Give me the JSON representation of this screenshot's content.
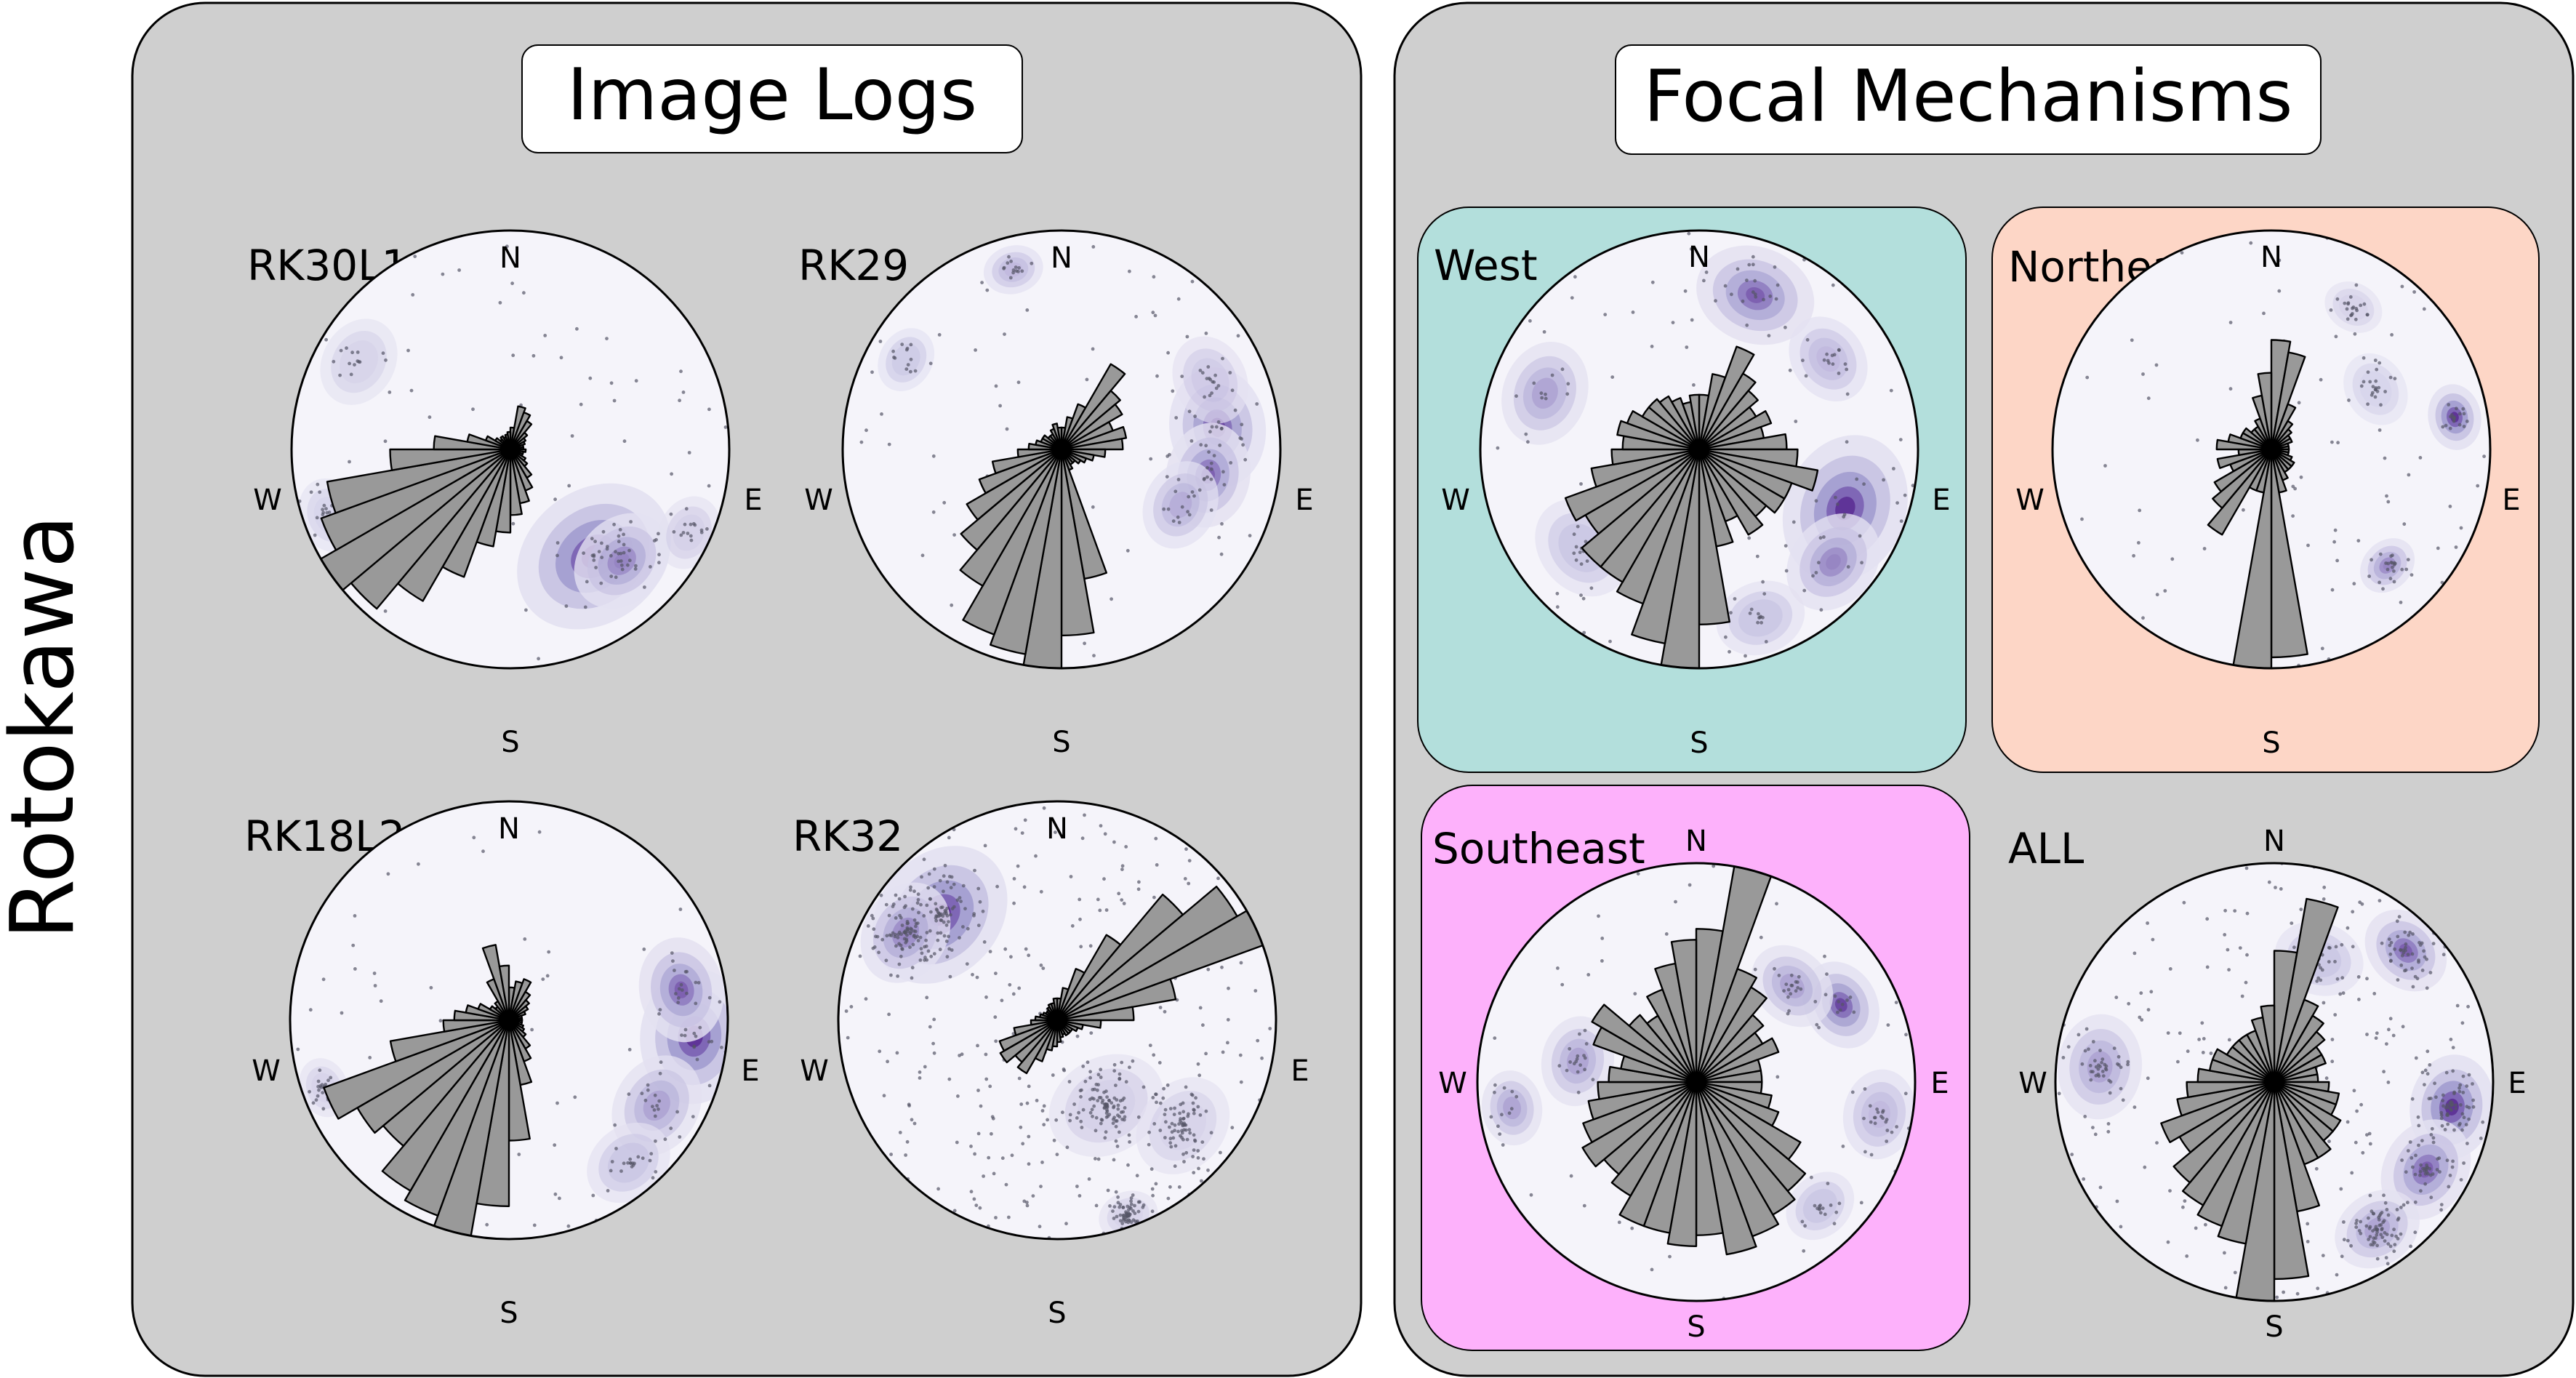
{
  "figure": {
    "side_label": "Rotokawa",
    "colors": {
      "panel_bg": "#cfcfcf",
      "stereonet_bg": "#f5f4fa",
      "density_low": "#e3e1f1",
      "density_mid": "#a29ccf",
      "density_high": "#5b2e94",
      "rose_fill": "#999999",
      "west_bg": "#b3dfdc",
      "northeast_bg": "#fdd6c6",
      "southeast_bg": "#fdb1fb"
    }
  },
  "panels": [
    {
      "title": "Image Logs",
      "plots": [
        {
          "label": "RK30L1",
          "bg_color": "",
          "compass": {
            "n": "N",
            "s": "S",
            "e": "E",
            "w": "W"
          }
        },
        {
          "label": "RK29",
          "bg_color": "",
          "compass": {
            "n": "N",
            "s": "S",
            "e": "E",
            "w": "W"
          }
        },
        {
          "label": "RK18L2",
          "bg_color": "",
          "compass": {
            "n": "N",
            "s": "S",
            "e": "E",
            "w": "W"
          }
        },
        {
          "label": "RK32",
          "bg_color": "",
          "compass": {
            "n": "N",
            "s": "S",
            "e": "E",
            "w": "W"
          }
        }
      ]
    },
    {
      "title": "Focal Mechanisms",
      "plots": [
        {
          "label": "West",
          "bg_color": "#b3dfdc",
          "compass": {
            "n": "N",
            "s": "S",
            "e": "E",
            "w": "W"
          }
        },
        {
          "label": "Northeast",
          "bg_color": "#fdd6c6",
          "compass": {
            "n": "N",
            "s": "S",
            "e": "E",
            "w": "W"
          }
        },
        {
          "label": "Southeast",
          "bg_color": "#fdb1fb",
          "compass": {
            "n": "N",
            "s": "S",
            "e": "E",
            "w": "W"
          }
        },
        {
          "label": "ALL",
          "bg_color": "",
          "compass": {
            "n": "N",
            "s": "S",
            "e": "E",
            "w": "W"
          }
        }
      ]
    }
  ],
  "chart_data": [
    {
      "type": "rose",
      "group": "Image Logs",
      "label": "RK30L1",
      "bin_width_deg": 10,
      "rose": [
        0.1,
        0.2,
        0.18,
        0.15,
        0.1,
        0.08,
        0.07,
        0.06,
        0.06,
        0.07,
        0.06,
        0.06,
        0.08,
        0.1,
        0.15,
        0.2,
        0.25,
        0.3,
        0.38,
        0.45,
        0.62,
        0.8,
        0.95,
        1.0,
        0.92,
        0.85,
        0.55,
        0.35,
        0.2,
        0.12,
        0.08,
        0.06,
        0.07,
        0.06,
        0.07,
        0.08
      ],
      "density": [
        {
          "az": 142,
          "r": 0.62,
          "w": 0.55,
          "s": 1.0
        },
        {
          "az": 135,
          "r": 0.72,
          "w": 0.35,
          "s": 0.7
        },
        {
          "az": 115,
          "r": 0.9,
          "w": 0.25,
          "s": 0.25
        },
        {
          "az": 300,
          "r": 0.8,
          "w": 0.3,
          "s": 0.18
        },
        {
          "az": 250,
          "r": 0.88,
          "w": 0.25,
          "s": 0.15
        }
      ]
    },
    {
      "type": "rose",
      "group": "Image Logs",
      "label": "RK29",
      "bin_width_deg": 10,
      "rose": [
        0.1,
        0.15,
        0.22,
        0.45,
        0.35,
        0.32,
        0.25,
        0.3,
        0.28,
        0.2,
        0.15,
        0.12,
        0.1,
        0.08,
        0.08,
        0.1,
        0.6,
        0.85,
        1.0,
        0.95,
        0.9,
        0.72,
        0.6,
        0.5,
        0.4,
        0.32,
        0.2,
        0.15,
        0.12,
        0.1,
        0.1,
        0.08,
        0.08,
        0.1,
        0.12,
        0.1
      ],
      "density": [
        {
          "az": 82,
          "r": 0.72,
          "w": 0.4,
          "s": 0.9
        },
        {
          "az": 100,
          "r": 0.68,
          "w": 0.35,
          "s": 0.8
        },
        {
          "az": 115,
          "r": 0.6,
          "w": 0.3,
          "s": 0.55
        },
        {
          "az": 345,
          "r": 0.85,
          "w": 0.2,
          "s": 0.5
        },
        {
          "az": 300,
          "r": 0.82,
          "w": 0.22,
          "s": 0.35
        },
        {
          "az": 65,
          "r": 0.75,
          "w": 0.3,
          "s": 0.3
        }
      ]
    },
    {
      "type": "rose",
      "group": "Image Logs",
      "label": "RK18L2",
      "bin_width_deg": 10,
      "rose": [
        0.15,
        0.18,
        0.2,
        0.15,
        0.12,
        0.1,
        0.08,
        0.06,
        0.06,
        0.06,
        0.06,
        0.07,
        0.08,
        0.1,
        0.15,
        0.2,
        0.3,
        0.55,
        0.85,
        1.0,
        0.95,
        0.9,
        0.75,
        0.8,
        0.9,
        0.55,
        0.3,
        0.25,
        0.2,
        0.15,
        0.1,
        0.08,
        0.1,
        0.2,
        0.35,
        0.25
      ],
      "density": [
        {
          "az": 95,
          "r": 0.85,
          "w": 0.45,
          "s": 1.0
        },
        {
          "az": 80,
          "r": 0.8,
          "w": 0.35,
          "s": 0.8
        },
        {
          "az": 120,
          "r": 0.78,
          "w": 0.35,
          "s": 0.6
        },
        {
          "az": 140,
          "r": 0.85,
          "w": 0.3,
          "s": 0.4
        },
        {
          "az": 250,
          "r": 0.9,
          "w": 0.2,
          "s": 0.2
        }
      ]
    },
    {
      "type": "rose",
      "group": "Image Logs",
      "label": "RK32",
      "bin_width_deg": 10,
      "rose": [
        0.1,
        0.15,
        0.25,
        0.45,
        0.75,
        0.95,
        1.0,
        0.55,
        0.35,
        0.2,
        0.12,
        0.1,
        0.08,
        0.08,
        0.08,
        0.07,
        0.08,
        0.1,
        0.12,
        0.14,
        0.2,
        0.28,
        0.25,
        0.3,
        0.28,
        0.2,
        0.12,
        0.1,
        0.08,
        0.07,
        0.06,
        0.06,
        0.07,
        0.08,
        0.08,
        0.1
      ],
      "density": [
        {
          "az": 312,
          "r": 0.72,
          "w": 0.5,
          "s": 1.0
        },
        {
          "az": 300,
          "r": 0.8,
          "w": 0.35,
          "s": 0.7
        },
        {
          "az": 150,
          "r": 0.45,
          "w": 0.4,
          "s": 0.25
        },
        {
          "az": 130,
          "r": 0.75,
          "w": 0.35,
          "s": 0.2
        },
        {
          "az": 160,
          "r": 0.95,
          "w": 0.2,
          "s": 0.2
        }
      ]
    },
    {
      "type": "rose",
      "group": "Focal Mechanisms",
      "label": "West",
      "bin_width_deg": 10,
      "rose": [
        0.25,
        0.35,
        0.5,
        0.4,
        0.35,
        0.3,
        0.35,
        0.3,
        0.4,
        0.45,
        0.55,
        0.45,
        0.45,
        0.4,
        0.45,
        0.35,
        0.45,
        0.8,
        1.0,
        0.9,
        0.75,
        0.7,
        0.7,
        0.6,
        0.65,
        0.5,
        0.4,
        0.35,
        0.38,
        0.35,
        0.3,
        0.3,
        0.28,
        0.25,
        0.22,
        0.25
      ],
      "density": [
        {
          "az": 112,
          "r": 0.72,
          "w": 0.5,
          "s": 1.0
        },
        {
          "az": 130,
          "r": 0.8,
          "w": 0.35,
          "s": 0.7
        },
        {
          "az": 20,
          "r": 0.75,
          "w": 0.4,
          "s": 0.8
        },
        {
          "az": 290,
          "r": 0.75,
          "w": 0.35,
          "s": 0.6
        },
        {
          "az": 55,
          "r": 0.72,
          "w": 0.3,
          "s": 0.5
        },
        {
          "az": 230,
          "r": 0.7,
          "w": 0.35,
          "s": 0.4
        },
        {
          "az": 160,
          "r": 0.82,
          "w": 0.3,
          "s": 0.4
        }
      ]
    },
    {
      "type": "rose",
      "group": "Focal Mechanisms",
      "label": "Northeast",
      "bin_width_deg": 10,
      "rose": [
        0.5,
        0.45,
        0.22,
        0.15,
        0.12,
        0.1,
        0.1,
        0.08,
        0.08,
        0.08,
        0.08,
        0.1,
        0.12,
        0.12,
        0.12,
        0.15,
        0.2,
        0.95,
        1.0,
        0.2,
        0.2,
        0.45,
        0.35,
        0.3,
        0.2,
        0.25,
        0.15,
        0.25,
        0.2,
        0.15,
        0.15,
        0.12,
        0.12,
        0.15,
        0.25,
        0.35
      ],
      "density": [
        {
          "az": 80,
          "r": 0.85,
          "w": 0.22,
          "s": 1.0
        },
        {
          "az": 135,
          "r": 0.75,
          "w": 0.2,
          "s": 0.7
        },
        {
          "az": 30,
          "r": 0.75,
          "w": 0.2,
          "s": 0.2
        },
        {
          "az": 60,
          "r": 0.55,
          "w": 0.25,
          "s": 0.15
        }
      ]
    },
    {
      "type": "rose",
      "group": "Focal Mechanisms",
      "label": "Southeast",
      "bin_width_deg": 10,
      "rose": [
        0.7,
        1.0,
        0.55,
        0.5,
        0.4,
        0.35,
        0.4,
        0.3,
        0.3,
        0.3,
        0.35,
        0.4,
        0.55,
        0.65,
        0.7,
        0.75,
        0.8,
        0.7,
        0.75,
        0.7,
        0.7,
        0.6,
        0.55,
        0.6,
        0.55,
        0.5,
        0.45,
        0.4,
        0.35,
        0.5,
        0.55,
        0.4,
        0.35,
        0.45,
        0.55,
        0.65
      ],
      "density": [
        {
          "az": 62,
          "r": 0.75,
          "w": 0.3,
          "s": 0.9
        },
        {
          "az": 45,
          "r": 0.62,
          "w": 0.3,
          "s": 0.6
        },
        {
          "az": 280,
          "r": 0.55,
          "w": 0.3,
          "s": 0.6
        },
        {
          "az": 262,
          "r": 0.85,
          "w": 0.25,
          "s": 0.6
        },
        {
          "az": 100,
          "r": 0.85,
          "w": 0.3,
          "s": 0.5
        },
        {
          "az": 135,
          "r": 0.8,
          "w": 0.25,
          "s": 0.4
        }
      ]
    },
    {
      "type": "rose",
      "group": "Focal Mechanisms",
      "label": "ALL",
      "bin_width_deg": 10,
      "rose": [
        0.6,
        0.85,
        0.4,
        0.35,
        0.3,
        0.25,
        0.25,
        0.2,
        0.2,
        0.25,
        0.3,
        0.3,
        0.35,
        0.35,
        0.4,
        0.4,
        0.6,
        0.9,
        1.0,
        0.75,
        0.7,
        0.65,
        0.6,
        0.5,
        0.55,
        0.45,
        0.4,
        0.35,
        0.3,
        0.3,
        0.25,
        0.25,
        0.25,
        0.25,
        0.3,
        0.35
      ],
      "density": [
        {
          "az": 98,
          "r": 0.82,
          "w": 0.35,
          "s": 1.0
        },
        {
          "az": 120,
          "r": 0.8,
          "w": 0.35,
          "s": 0.8
        },
        {
          "az": 45,
          "r": 0.85,
          "w": 0.3,
          "s": 0.8
        },
        {
          "az": 275,
          "r": 0.8,
          "w": 0.35,
          "s": 0.6
        },
        {
          "az": 145,
          "r": 0.82,
          "w": 0.3,
          "s": 0.6
        },
        {
          "az": 20,
          "r": 0.6,
          "w": 0.3,
          "s": 0.4
        }
      ]
    }
  ]
}
